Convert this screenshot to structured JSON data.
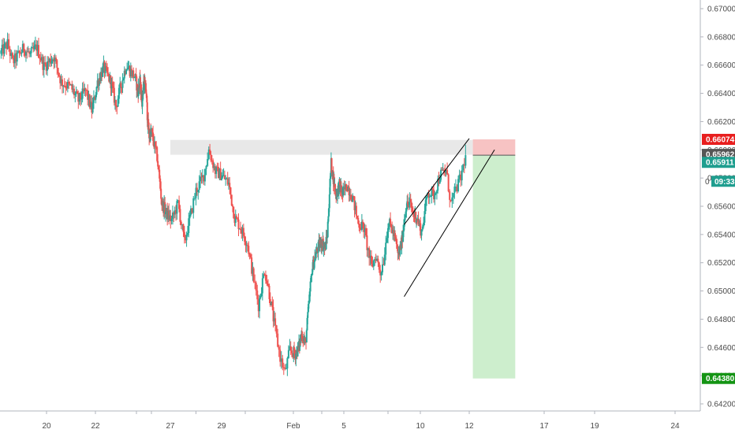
{
  "chart_data": {
    "type": "candlestick",
    "colors": {
      "up": "#26a69a",
      "down": "#ef5350",
      "background": "#ffffff",
      "axis_line": "#b2b5be",
      "resistance_zone": "#e8e8e8",
      "stop_zone": "#f7c3c3",
      "target_zone": "#cdeecd",
      "trendline": "#000000",
      "tag_red": "#e81e1e",
      "tag_dark": "#555555",
      "tag_teal": "#1f9e8f",
      "tag_green": "#149414"
    },
    "y_axis": {
      "position": "right",
      "range": [
        0.6416,
        0.6712
      ],
      "ticks": [
        "0.67000",
        "0.66800",
        "0.66600",
        "0.66400",
        "0.66200",
        "0.66000",
        "0.65800",
        "0.65600",
        "0.65400",
        "0.65200",
        "0.65000",
        "0.64800",
        "0.64600",
        "0.64400",
        "0.64200"
      ]
    },
    "x_axis": {
      "range": [
        18.15,
        25.1
      ],
      "ticks": [
        {
          "x": 20,
          "label": "20"
        },
        {
          "x": 22,
          "label": "22"
        },
        {
          "x": 27,
          "label": "27"
        },
        {
          "x": 29,
          "label": "29"
        },
        {
          "x": 32,
          "label": "Feb"
        },
        {
          "x": 36,
          "label": "5"
        },
        {
          "x": 40,
          "label": "10"
        },
        {
          "x": 42,
          "label": "12"
        },
        {
          "x": 45,
          "label": "17"
        },
        {
          "x": 47,
          "label": "19"
        },
        {
          "x": 50,
          "label": "24"
        }
      ],
      "tick_positions": [
        20,
        22,
        24,
        26,
        28,
        30,
        32,
        34,
        36,
        38,
        40,
        42,
        45,
        47,
        50
      ]
    },
    "price_path": [
      [
        18.15,
        0.6668
      ],
      [
        18.45,
        0.6675
      ],
      [
        18.65,
        0.6662
      ],
      [
        19.1,
        0.6672
      ],
      [
        19.35,
        0.6667
      ],
      [
        19.6,
        0.6673
      ],
      [
        19.9,
        0.6659
      ],
      [
        20.3,
        0.6666
      ],
      [
        20.6,
        0.6648
      ],
      [
        21.0,
        0.6644
      ],
      [
        21.3,
        0.6635
      ],
      [
        21.6,
        0.6642
      ],
      [
        21.85,
        0.6628
      ],
      [
        22.1,
        0.6648
      ],
      [
        22.4,
        0.6658
      ],
      [
        22.75,
        0.6648
      ],
      [
        23.0,
        0.6631
      ],
      [
        23.2,
        0.6643
      ],
      [
        23.5,
        0.666
      ],
      [
        23.9,
        0.6652
      ],
      [
        24.15,
        0.664
      ],
      [
        24.45,
        0.6648
      ],
      [
        24.75,
        0.6635
      ],
      [
        25.0,
        0.6649
      ],
      [
        25.3,
        0.6641
      ],
      [
        25.5,
        0.662
      ],
      [
        25.7,
        0.661
      ],
      [
        26.0,
        0.6612
      ],
      [
        26.3,
        0.6595
      ],
      [
        26.55,
        0.6562
      ],
      [
        26.8,
        0.6555
      ],
      [
        27.05,
        0.655
      ],
      [
        27.3,
        0.6562
      ],
      [
        27.55,
        0.6534
      ],
      [
        27.8,
        0.6555
      ],
      [
        28.0,
        0.6571
      ],
      [
        28.3,
        0.6582
      ],
      [
        28.5,
        0.66
      ],
      [
        28.75,
        0.6585
      ],
      [
        29.0,
        0.6582
      ],
      [
        29.3,
        0.6576
      ],
      [
        29.55,
        0.6552
      ],
      [
        29.8,
        0.6545
      ],
      [
        30.1,
        0.6533
      ],
      [
        30.35,
        0.6508
      ],
      [
        30.55,
        0.649
      ],
      [
        30.8,
        0.6515
      ],
      [
        31.0,
        0.6498
      ],
      [
        31.25,
        0.6472
      ],
      [
        31.45,
        0.6453
      ],
      [
        31.65,
        0.6442
      ],
      [
        31.85,
        0.6458
      ],
      [
        32.1,
        0.6455
      ],
      [
        32.35,
        0.6459
      ],
      [
        32.6,
        0.647
      ],
      [
        32.85,
        0.6462
      ],
      [
        33.1,
        0.6492
      ],
      [
        33.3,
        0.6515
      ],
      [
        33.55,
        0.6525
      ],
      [
        33.8,
        0.6532
      ],
      [
        34.05,
        0.6535
      ],
      [
        34.3,
        0.653
      ],
      [
        34.5,
        0.654
      ],
      [
        34.7,
        0.657
      ],
      [
        34.85,
        0.659
      ],
      [
        35.05,
        0.658
      ],
      [
        35.3,
        0.6568
      ],
      [
        35.6,
        0.6575
      ],
      [
        35.9,
        0.6568
      ],
      [
        36.15,
        0.6575
      ],
      [
        36.4,
        0.6566
      ],
      [
        36.65,
        0.6548
      ],
      [
        36.9,
        0.6545
      ],
      [
        37.05,
        0.6532
      ],
      [
        37.25,
        0.6517
      ],
      [
        37.45,
        0.6525
      ],
      [
        37.65,
        0.6513
      ],
      [
        37.8,
        0.6522
      ],
      [
        38.0,
        0.6548
      ],
      [
        38.2,
        0.6545
      ],
      [
        38.4,
        0.6538
      ],
      [
        38.65,
        0.6525
      ],
      [
        38.85,
        0.6535
      ],
      [
        39.1,
        0.656
      ],
      [
        39.35,
        0.6562
      ],
      [
        39.55,
        0.6555
      ],
      [
        39.8,
        0.6552
      ],
      [
        40.05,
        0.6542
      ],
      [
        40.3,
        0.657
      ],
      [
        40.55,
        0.6568
      ],
      [
        40.8,
        0.6582
      ],
      [
        41.05,
        0.6585
      ],
      [
        41.25,
        0.6562
      ],
      [
        41.45,
        0.6572
      ],
      [
        41.65,
        0.658
      ],
      [
        41.85,
        0.65962
      ]
    ],
    "zones": [
      {
        "name": "resistance",
        "x0": 27.0,
        "x1": 42.1,
        "y0": 0.65965,
        "y1": 0.6607
      },
      {
        "name": "stop",
        "x0": 42.1,
        "x1": 43.35,
        "y0": 0.65962,
        "y1": 0.66074
      },
      {
        "name": "target",
        "x0": 42.1,
        "x1": 43.35,
        "y0": 0.6438,
        "y1": 0.65962
      }
    ],
    "trendlines": [
      {
        "name": "wedge-upper",
        "x1": 39.0,
        "y1": 0.6547,
        "x2": 42.0,
        "y2": 0.6608
      },
      {
        "name": "wedge-lower",
        "x1": 39.0,
        "y1": 0.6496,
        "x2": 42.7,
        "y2": 0.66
      }
    ],
    "price_tags": [
      {
        "name": "stop-price-tag",
        "label": "0.66074",
        "value": 0.66074,
        "color": "#e81e1e"
      },
      {
        "name": "entry-price-tag",
        "label": "0.65962",
        "value": 0.65962,
        "color": "#555555"
      },
      {
        "name": "last-price-tag",
        "label": "0.65911",
        "value": 0.65911,
        "color": "#1f9e8f"
      },
      {
        "name": "target-price-tag",
        "label": "0.64380",
        "value": 0.6438,
        "color": "#149414"
      }
    ],
    "countdown": {
      "label": "09:33",
      "value": 0.65777,
      "color": "#1f9e8f"
    },
    "covered_tick_fragment": "0"
  }
}
